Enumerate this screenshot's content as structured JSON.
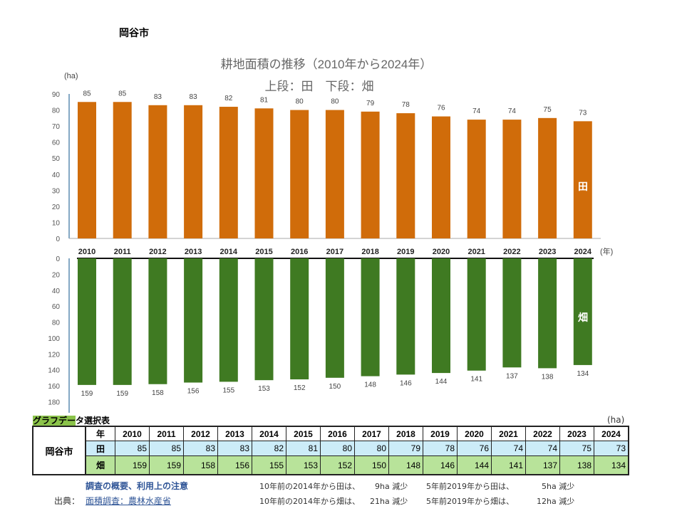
{
  "city": "岡谷市",
  "chart_data": {
    "type": "bar",
    "title": "耕地面積の推移（2010年から2024年）",
    "subtitle": "上段：田　下段：畑",
    "ylabel": "(ha)",
    "xunit": "(年)",
    "categories": [
      "2010",
      "2011",
      "2012",
      "2013",
      "2014",
      "2015",
      "2016",
      "2017",
      "2018",
      "2019",
      "2020",
      "2021",
      "2022",
      "2023",
      "2024"
    ],
    "series": [
      {
        "name": "田",
        "color": "#d06c0a",
        "ylim": [
          0,
          90
        ],
        "ticks": [
          0,
          10,
          20,
          30,
          40,
          50,
          60,
          70,
          80,
          90
        ],
        "values": [
          85,
          85,
          83,
          83,
          82,
          81,
          80,
          80,
          79,
          78,
          76,
          74,
          74,
          75,
          73
        ]
      },
      {
        "name": "畑",
        "color": "#3f7a22",
        "ylim": [
          0,
          180
        ],
        "inverted": true,
        "ticks": [
          0,
          20,
          40,
          60,
          80,
          100,
          120,
          140,
          160,
          180
        ],
        "values": [
          159,
          159,
          158,
          156,
          155,
          153,
          152,
          150,
          148,
          146,
          144,
          141,
          137,
          138,
          134
        ]
      }
    ],
    "grid": false
  },
  "table": {
    "title_highlight": "グラフデー",
    "title_rest": "タ選択表",
    "unit": "(ha)",
    "year_header": "年",
    "city": "岡谷市",
    "row_labels": [
      "田",
      "畑"
    ]
  },
  "footer": {
    "notes_link": "調査の概要、利用上の注意",
    "source_label": "出典：",
    "source_link": "面積調査：農林水産省",
    "notes": [
      [
        "10年前の2014年から田は、",
        "9ha 減少",
        "5年前2019年から田は、",
        "5ha 減少"
      ],
      [
        "10年前の2014年から畑は、",
        "21ha 減少",
        "5年前2019年から畑は、",
        "12ha 減少"
      ]
    ]
  }
}
